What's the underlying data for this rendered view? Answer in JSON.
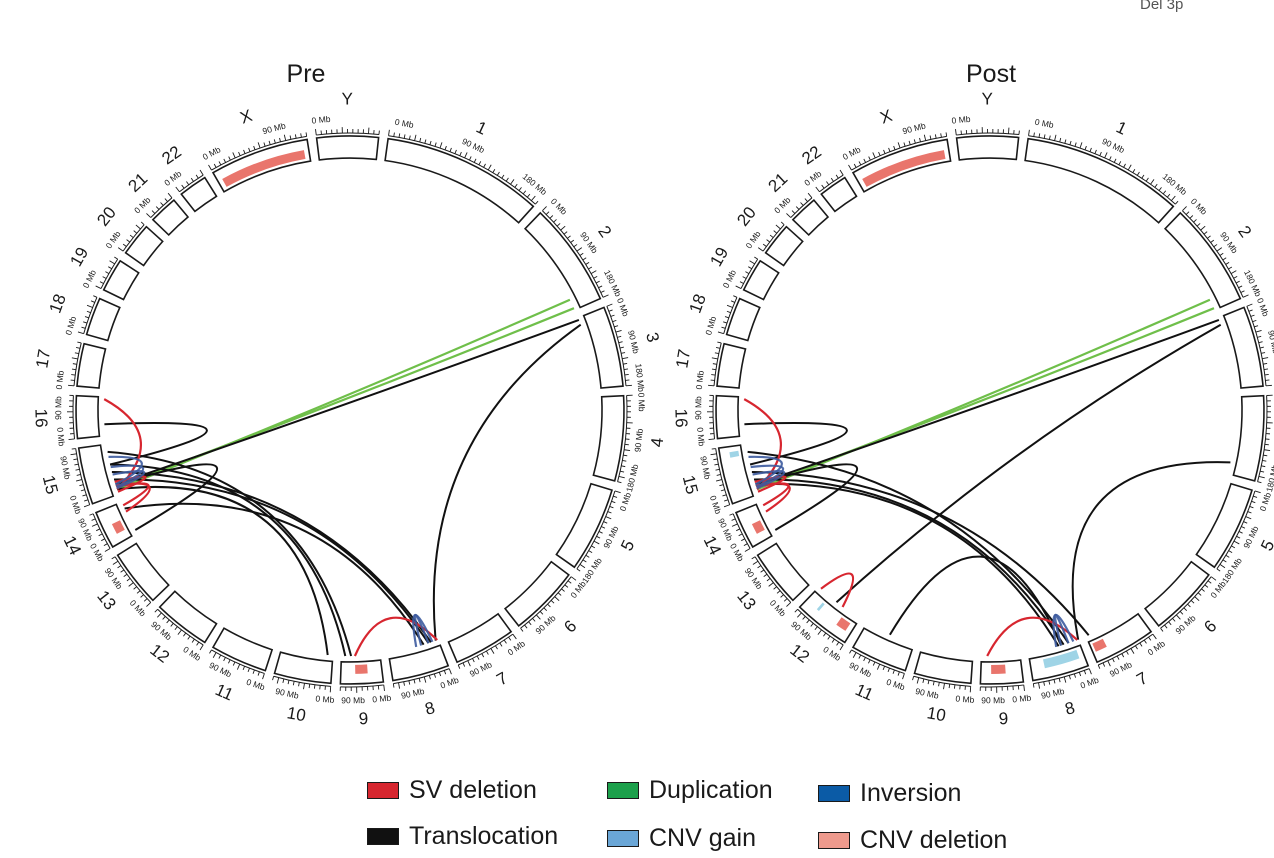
{
  "corner_label": "Del 3p",
  "colors": {
    "sv_deletion": "#d7262f",
    "translocation": "#111111",
    "duplication": "#6fbf4a",
    "inversion": "#3d5b9e",
    "cnv_gain": "#9fd4e6",
    "cnv_deletion": "#e9756c",
    "legend_duplication": "#1ca04b",
    "legend_inversion": "#0b5ba6",
    "legend_cnv_gain": "#6aa6d6",
    "legend_cnv_deletion": "#ee9a8d"
  },
  "chromosomes": [
    {
      "name": "1",
      "ticks": [
        "0 Mb",
        "90 Mb",
        "180 Mb"
      ]
    },
    {
      "name": "2",
      "ticks": [
        "0 Mb",
        "90 Mb",
        "180 Mb"
      ]
    },
    {
      "name": "3",
      "ticks": [
        "0 Mb",
        "90 Mb",
        "180 Mb"
      ]
    },
    {
      "name": "4",
      "ticks": [
        "0 Mb",
        "90 Mb",
        "180 Mb"
      ]
    },
    {
      "name": "5",
      "ticks": [
        "0 Mb",
        "90 Mb",
        "180 Mb"
      ]
    },
    {
      "name": "6",
      "ticks": [
        "0 Mb",
        "90 Mb"
      ]
    },
    {
      "name": "7",
      "ticks": [
        "0 Mb",
        "90 Mb"
      ]
    },
    {
      "name": "8",
      "ticks": [
        "0 Mb",
        "90 Mb"
      ]
    },
    {
      "name": "9",
      "ticks": [
        "0 Mb",
        "90 Mb"
      ]
    },
    {
      "name": "10",
      "ticks": [
        "0 Mb",
        "90 Mb"
      ]
    },
    {
      "name": "11",
      "ticks": [
        "0 Mb",
        "90 Mb"
      ]
    },
    {
      "name": "12",
      "ticks": [
        "0 Mb",
        "90 Mb"
      ]
    },
    {
      "name": "13",
      "ticks": [
        "0 Mb",
        "90 Mb"
      ]
    },
    {
      "name": "14",
      "ticks": [
        "0 Mb",
        "90 Mb"
      ]
    },
    {
      "name": "15",
      "ticks": [
        "0 Mb",
        "90 Mb"
      ]
    },
    {
      "name": "16",
      "ticks": [
        "0 Mb",
        "90 Mb"
      ]
    },
    {
      "name": "17",
      "ticks": [
        "0 Mb"
      ]
    },
    {
      "name": "18",
      "ticks": [
        "0 Mb"
      ]
    },
    {
      "name": "19",
      "ticks": [
        "0 Mb"
      ]
    },
    {
      "name": "20",
      "ticks": [
        "0 Mb"
      ]
    },
    {
      "name": "21",
      "ticks": [
        "0 Mb"
      ]
    },
    {
      "name": "22",
      "ticks": [
        "0 Mb"
      ]
    },
    {
      "name": "X",
      "ticks": [
        "0 Mb",
        "90 Mb"
      ]
    },
    {
      "name": "Y",
      "ticks": [
        "0 Mb"
      ]
    }
  ],
  "chart_data": [
    {
      "type": "circos",
      "title": "Pre",
      "cnv": [
        {
          "type": "cnv_deletion",
          "chrom": "X",
          "start_frac": 0.05,
          "end_frac": 0.95
        },
        {
          "type": "cnv_deletion",
          "chrom": "14",
          "start_frac": 0.25,
          "end_frac": 0.55
        },
        {
          "type": "cnv_deletion",
          "chrom": "9",
          "start_frac": 0.35,
          "end_frac": 0.65
        }
      ],
      "links": [
        {
          "type": "duplication",
          "a": [
            "2",
            0.88
          ],
          "b": [
            "15",
            0.1
          ]
        },
        {
          "type": "duplication",
          "a": [
            "2",
            0.98
          ],
          "b": [
            "15",
            0.15
          ]
        },
        {
          "type": "translocation",
          "a": [
            "3",
            0.03
          ],
          "b": [
            "15",
            0.2
          ]
        },
        {
          "type": "translocation",
          "a": [
            "3",
            0.1
          ],
          "b": [
            "8",
            0.05
          ]
        },
        {
          "type": "translocation",
          "a": [
            "16",
            0.3
          ],
          "b": [
            "15",
            0.6
          ]
        },
        {
          "type": "translocation",
          "a": [
            "15",
            0.85
          ],
          "b": [
            "9",
            0.75
          ]
        },
        {
          "type": "translocation",
          "a": [
            "15",
            0.3
          ],
          "b": [
            "8",
            0.2
          ]
        },
        {
          "type": "translocation",
          "a": [
            "14",
            0.8
          ],
          "b": [
            "8",
            0.3
          ]
        },
        {
          "type": "translocation",
          "a": [
            "14",
            0.1
          ],
          "b": [
            "15",
            0.2
          ]
        },
        {
          "type": "translocation",
          "a": [
            "15",
            0.1
          ],
          "b": [
            "10",
            0.1
          ]
        },
        {
          "type": "translocation",
          "a": [
            "15",
            0.45
          ],
          "b": [
            "8",
            0.15
          ]
        },
        {
          "type": "translocation",
          "a": [
            "15",
            0.6
          ],
          "b": [
            "9",
            0.9
          ]
        },
        {
          "type": "sv_deletion",
          "a": [
            "16",
            0.95
          ],
          "b": [
            "15",
            0.1
          ]
        },
        {
          "type": "sv_deletion",
          "a": [
            "14",
            0.9
          ],
          "b": [
            "15",
            0.15
          ]
        },
        {
          "type": "sv_deletion",
          "a": [
            "14",
            0.7
          ],
          "b": [
            "15",
            0.18
          ]
        },
        {
          "type": "sv_deletion",
          "a": [
            "15",
            0.05
          ],
          "b": [
            "15",
            0.25
          ]
        },
        {
          "type": "sv_deletion",
          "a": [
            "9",
            0.65
          ],
          "b": [
            "8",
            0.02
          ]
        },
        {
          "type": "inversion",
          "a": [
            "15",
            0.75
          ],
          "b": [
            "15",
            0.2
          ]
        },
        {
          "type": "inversion",
          "a": [
            "15",
            0.55
          ],
          "b": [
            "15",
            0.15
          ]
        },
        {
          "type": "inversion",
          "a": [
            "15",
            0.4
          ],
          "b": [
            "15",
            0.12
          ]
        },
        {
          "type": "inversion",
          "a": [
            "8",
            0.12
          ],
          "b": [
            "8",
            0.45
          ]
        },
        {
          "type": "inversion",
          "a": [
            "8",
            0.2
          ],
          "b": [
            "8",
            0.35
          ]
        }
      ]
    },
    {
      "type": "circos",
      "title": "Post",
      "cnv": [
        {
          "type": "cnv_deletion",
          "chrom": "X",
          "start_frac": 0.05,
          "end_frac": 0.95
        },
        {
          "type": "cnv_deletion",
          "chrom": "14",
          "start_frac": 0.25,
          "end_frac": 0.55
        },
        {
          "type": "cnv_deletion",
          "chrom": "12",
          "start_frac": 0.1,
          "end_frac": 0.3
        },
        {
          "type": "cnv_deletion",
          "chrom": "9",
          "start_frac": 0.4,
          "end_frac": 0.75
        },
        {
          "type": "cnv_deletion",
          "chrom": "7",
          "start_frac": 0.75,
          "end_frac": 0.95
        },
        {
          "type": "cnv_gain",
          "chrom": "8",
          "start_frac": 0.1,
          "end_frac": 0.75
        },
        {
          "type": "cnv_gain",
          "chrom": "15",
          "start_frac": 0.8,
          "end_frac": 0.9
        },
        {
          "type": "cnv_gain",
          "chrom": "12",
          "start_frac": 0.7,
          "end_frac": 0.75
        }
      ],
      "links": [
        {
          "type": "duplication",
          "a": [
            "2",
            0.88
          ],
          "b": [
            "15",
            0.1
          ]
        },
        {
          "type": "duplication",
          "a": [
            "2",
            0.98
          ],
          "b": [
            "15",
            0.15
          ]
        },
        {
          "type": "translocation",
          "a": [
            "3",
            0.03
          ],
          "b": [
            "15",
            0.2
          ]
        },
        {
          "type": "translocation",
          "a": [
            "3",
            0.1
          ],
          "b": [
            "12",
            0.55
          ]
        },
        {
          "type": "translocation",
          "a": [
            "4",
            0.85
          ],
          "b": [
            "8",
            0.0
          ]
        },
        {
          "type": "translocation",
          "a": [
            "16",
            0.3
          ],
          "b": [
            "15",
            0.6
          ]
        },
        {
          "type": "translocation",
          "a": [
            "15",
            0.85
          ],
          "b": [
            "8",
            0.2
          ]
        },
        {
          "type": "translocation",
          "a": [
            "15",
            0.3
          ],
          "b": [
            "8",
            0.3
          ]
        },
        {
          "type": "translocation",
          "a": [
            "15",
            0.2
          ],
          "b": [
            "8",
            0.4
          ]
        },
        {
          "type": "translocation",
          "a": [
            "14",
            0.1
          ],
          "b": [
            "15",
            0.2
          ]
        },
        {
          "type": "translocation",
          "a": [
            "15",
            0.45
          ],
          "b": [
            "7",
            0.95
          ]
        },
        {
          "type": "translocation",
          "a": [
            "11",
            0.5
          ],
          "b": [
            "8",
            0.35
          ]
        },
        {
          "type": "sv_deletion",
          "a": [
            "16",
            0.95
          ],
          "b": [
            "15",
            0.1
          ]
        },
        {
          "type": "sv_deletion",
          "a": [
            "14",
            0.9
          ],
          "b": [
            "15",
            0.15
          ]
        },
        {
          "type": "sv_deletion",
          "a": [
            "14",
            0.7
          ],
          "b": [
            "15",
            0.18
          ]
        },
        {
          "type": "sv_deletion",
          "a": [
            "15",
            0.05
          ],
          "b": [
            "15",
            0.25
          ]
        },
        {
          "type": "sv_deletion",
          "a": [
            "9",
            0.85
          ],
          "b": [
            "8",
            0.02
          ]
        },
        {
          "type": "sv_deletion",
          "a": [
            "12",
            0.4
          ],
          "b": [
            "12",
            0.95
          ]
        },
        {
          "type": "inversion",
          "a": [
            "15",
            0.75
          ],
          "b": [
            "15",
            0.2
          ]
        },
        {
          "type": "inversion",
          "a": [
            "15",
            0.55
          ],
          "b": [
            "15",
            0.15
          ]
        },
        {
          "type": "inversion",
          "a": [
            "15",
            0.4
          ],
          "b": [
            "15",
            0.12
          ]
        },
        {
          "type": "inversion",
          "a": [
            "8",
            0.1
          ],
          "b": [
            "8",
            0.45
          ]
        },
        {
          "type": "inversion",
          "a": [
            "8",
            0.2
          ],
          "b": [
            "8",
            0.35
          ]
        }
      ]
    }
  ],
  "legend": [
    {
      "label": "SV deletion",
      "color_key": "sv_deletion"
    },
    {
      "label": "Duplication",
      "color_key": "legend_duplication"
    },
    {
      "label": "Inversion",
      "color_key": "legend_inversion"
    },
    {
      "label": "Translocation",
      "color_key": "translocation"
    },
    {
      "label": "CNV gain",
      "color_key": "legend_cnv_gain"
    },
    {
      "label": "CNV deletion",
      "color_key": "legend_cnv_deletion"
    }
  ]
}
